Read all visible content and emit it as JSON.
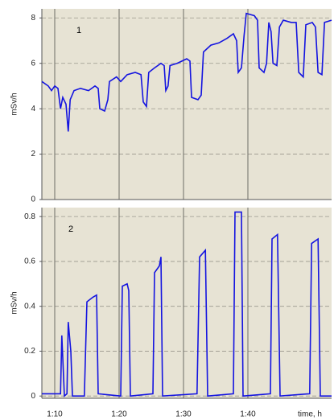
{
  "chart_data": [
    {
      "type": "line",
      "annotation": "1",
      "y_label": "mSv/h",
      "ylim": [
        0,
        8.4
      ],
      "yticks": [
        0,
        2,
        4,
        6,
        8
      ],
      "xlim": [
        68,
        113
      ],
      "xticks": [
        70,
        80,
        90,
        100
      ],
      "grid": true,
      "series": [
        {
          "color": "#1414e0",
          "x": [
            68,
            69,
            69.5,
            70,
            70.5,
            70.9,
            71.25,
            71.75,
            72.1,
            72.4,
            73,
            74,
            75.25,
            76.25,
            76.75,
            77,
            77.75,
            78.25,
            78.5,
            79.6,
            80.25,
            81.25,
            82.5,
            83.4,
            83.75,
            84.25,
            84.6,
            85.5,
            86.5,
            87,
            87.25,
            87.6,
            87.9,
            89,
            90.5,
            91,
            91.25,
            92.25,
            92.75,
            93.1,
            94.25,
            95.5,
            96.75,
            97.75,
            98.25,
            98.5,
            99,
            99.4,
            99.75,
            101,
            101.5,
            101.75,
            102.5,
            102.9,
            103.25,
            103.6,
            103.9,
            104.5,
            104.9,
            105.5,
            106.75,
            107.5,
            107.9,
            108.6,
            109,
            110,
            110.5,
            110.9,
            111.5,
            111.9,
            113
          ],
          "values": [
            5.2,
            5.0,
            4.8,
            5.0,
            4.9,
            4.0,
            4.5,
            4.2,
            3.0,
            4.4,
            4.8,
            4.9,
            4.8,
            5.0,
            4.9,
            4.0,
            3.9,
            4.4,
            5.2,
            5.4,
            5.2,
            5.5,
            5.6,
            5.5,
            4.3,
            4.1,
            5.6,
            5.8,
            6.0,
            5.9,
            4.8,
            5.0,
            5.9,
            6.0,
            6.2,
            6.1,
            4.5,
            4.4,
            4.6,
            6.5,
            6.8,
            6.9,
            7.1,
            7.3,
            7.0,
            5.6,
            5.8,
            7.2,
            8.2,
            8.1,
            7.9,
            5.8,
            5.6,
            6.0,
            7.8,
            7.4,
            6.0,
            5.9,
            7.6,
            7.9,
            7.8,
            7.8,
            5.6,
            5.4,
            7.7,
            7.8,
            7.6,
            5.6,
            5.5,
            7.8,
            7.9
          ]
        }
      ]
    },
    {
      "type": "line",
      "annotation": "2",
      "y_label": "mSv/h",
      "x_label": "time, h",
      "ylim": [
        -0.01,
        0.84
      ],
      "yticks": [
        0,
        0.2,
        0.4,
        0.6,
        0.8
      ],
      "xlim": [
        68,
        113
      ],
      "xticks": [
        {
          "value": 70,
          "label": "1:10"
        },
        {
          "value": 80,
          "label": "1:20"
        },
        {
          "value": 90,
          "label": "1:30"
        },
        {
          "value": 100,
          "label": "1:40"
        }
      ],
      "grid": true,
      "series": [
        {
          "color": "#1414e0",
          "x": [
            68,
            70.9,
            71.1,
            71.5,
            71.9,
            72.1,
            72.5,
            72.75,
            74.6,
            75,
            75.9,
            76.5,
            76.75,
            80.25,
            80.5,
            81.25,
            81.5,
            81.75,
            85.25,
            85.5,
            86.25,
            86.5,
            86.75,
            92.1,
            92.5,
            93.4,
            93.75,
            97.75,
            98,
            99,
            99.25,
            103.5,
            103.75,
            104.6,
            105,
            109.6,
            109.9,
            110.9,
            111.25,
            113
          ],
          "values": [
            0.01,
            0.01,
            0.27,
            0,
            0.01,
            0.33,
            0.2,
            0,
            0,
            0.42,
            0.44,
            0.45,
            0.01,
            0,
            0.49,
            0.5,
            0.47,
            0,
            0.01,
            0.55,
            0.58,
            0.62,
            0,
            0.01,
            0.62,
            0.65,
            0,
            0.01,
            0.82,
            0.82,
            0,
            0.01,
            0.7,
            0.72,
            0,
            0.01,
            0.68,
            0.7,
            0,
            0
          ]
        }
      ]
    }
  ]
}
